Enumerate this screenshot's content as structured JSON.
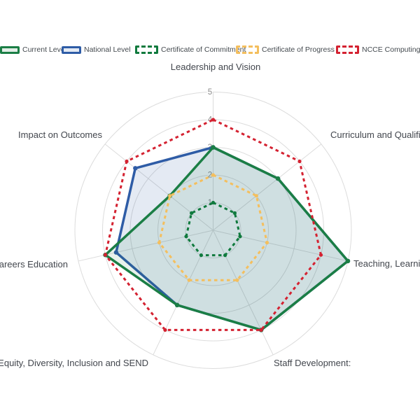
{
  "chart_data": {
    "type": "radar",
    "title": "",
    "categories": [
      "Leadership and Vision",
      "Curriculum and Qualificat",
      "Teaching, Learning",
      "Staff Development:",
      "Equity, Diversity, Inclusion and SEND",
      "Careers Education",
      "Impact on Outcomes"
    ],
    "series": [
      {
        "name": "Current Level",
        "values": [
          3,
          3,
          5,
          4,
          3,
          4,
          2
        ],
        "color": "#1b7e45",
        "style": "solid",
        "fill": "rgba(27,126,69,0.10)",
        "swatch_fill": "#e2eee7"
      },
      {
        "name": "National Level",
        "values": [
          3,
          3,
          5,
          4,
          3,
          3.6,
          3.6
        ],
        "color": "#2e5ca6",
        "style": "solid",
        "fill": "rgba(46,92,166,0.13)",
        "swatch_fill": "#e3eaf4"
      },
      {
        "name": "Certificate of Commitment",
        "values": [
          1,
          1,
          1,
          1,
          1,
          1,
          1
        ],
        "color": "#107a3e",
        "style": "dash",
        "fill": "none"
      },
      {
        "name": "Certificate of Progress",
        "values": [
          2,
          2,
          2,
          2,
          2,
          2,
          2
        ],
        "color": "#f4bf5e",
        "style": "dash",
        "fill": "none"
      },
      {
        "name": "NCCE Computing M",
        "values": [
          4,
          4,
          4,
          4,
          4,
          4,
          4
        ],
        "color": "#d42231",
        "style": "dash",
        "fill": "none"
      }
    ],
    "radial_axis": {
      "range": [
        0,
        5
      ],
      "ticks": [
        1,
        2,
        3,
        4,
        5
      ]
    },
    "grid_shape": "circular",
    "legend_position": "top"
  }
}
